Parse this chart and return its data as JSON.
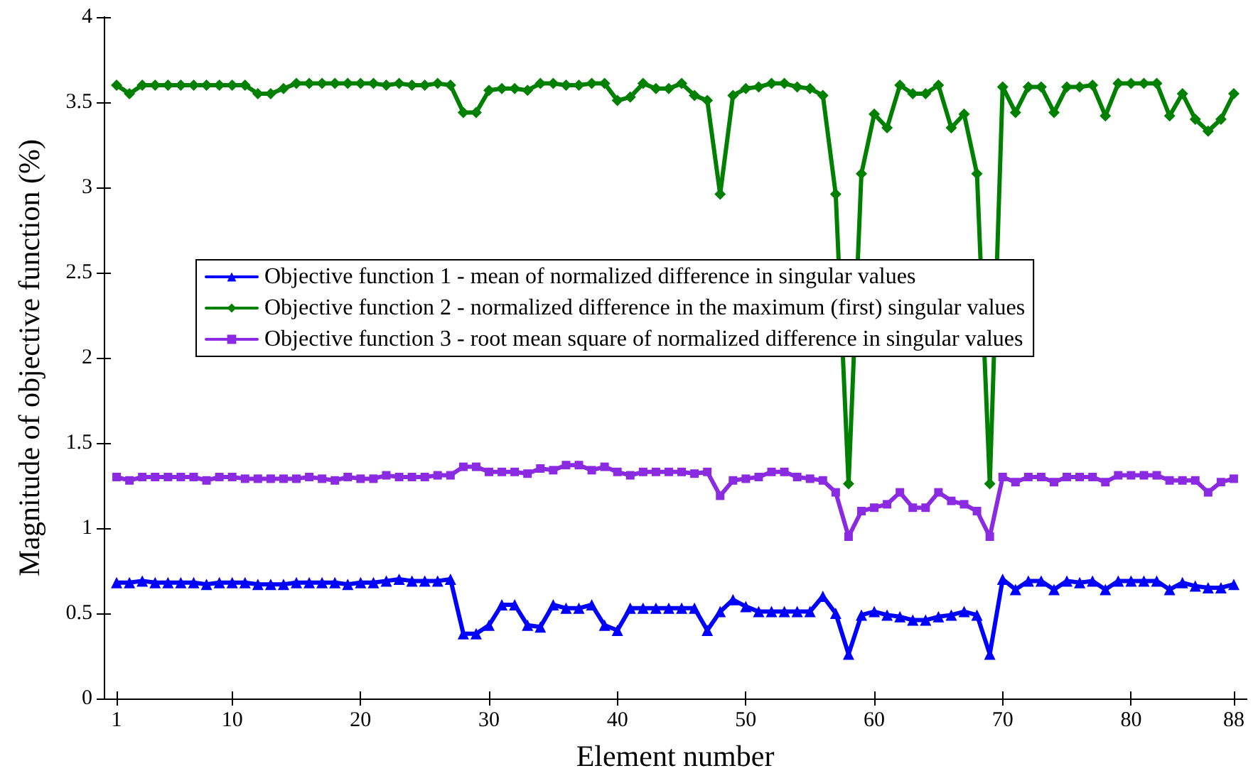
{
  "chart_data": {
    "type": "line",
    "xlabel": "Element number",
    "ylabel": "Magnitude of objective function (%)",
    "x": [
      1,
      2,
      3,
      4,
      5,
      6,
      7,
      8,
      9,
      10,
      11,
      12,
      13,
      14,
      15,
      16,
      17,
      18,
      19,
      20,
      21,
      22,
      23,
      24,
      25,
      26,
      27,
      28,
      29,
      30,
      31,
      32,
      33,
      34,
      35,
      36,
      37,
      38,
      39,
      40,
      41,
      42,
      43,
      44,
      45,
      46,
      47,
      48,
      49,
      50,
      51,
      52,
      53,
      54,
      55,
      56,
      57,
      58,
      59,
      60,
      61,
      62,
      63,
      64,
      65,
      66,
      67,
      68,
      69,
      70,
      71,
      72,
      73,
      74,
      75,
      76,
      77,
      78,
      79,
      80,
      81,
      82,
      83,
      84,
      85,
      86,
      87,
      88
    ],
    "xlim": [
      0,
      89
    ],
    "xticks": [
      1,
      10,
      20,
      30,
      40,
      50,
      60,
      70,
      80,
      88
    ],
    "ylim": [
      0,
      4
    ],
    "yticks": [
      0,
      0.5,
      1,
      1.5,
      2,
      2.5,
      3,
      3.5,
      4
    ],
    "grid": false,
    "legend": "center",
    "line_style": "solid",
    "series": [
      {
        "name": "Objective function 1 - mean of normalized difference in singular values",
        "color": "#0000ff",
        "marker": "triangle",
        "values": [
          0.68,
          0.68,
          0.69,
          0.68,
          0.68,
          0.68,
          0.68,
          0.67,
          0.68,
          0.68,
          0.68,
          0.67,
          0.67,
          0.67,
          0.68,
          0.68,
          0.68,
          0.68,
          0.67,
          0.68,
          0.68,
          0.69,
          0.7,
          0.69,
          0.69,
          0.69,
          0.7,
          0.38,
          0.38,
          0.43,
          0.55,
          0.55,
          0.43,
          0.42,
          0.55,
          0.53,
          0.53,
          0.55,
          0.43,
          0.4,
          0.53,
          0.53,
          0.53,
          0.53,
          0.53,
          0.53,
          0.4,
          0.51,
          0.58,
          0.54,
          0.51,
          0.51,
          0.51,
          0.51,
          0.51,
          0.6,
          0.5,
          0.26,
          0.49,
          0.51,
          0.49,
          0.48,
          0.46,
          0.46,
          0.48,
          0.49,
          0.51,
          0.49,
          0.26,
          0.7,
          0.64,
          0.69,
          0.69,
          0.64,
          0.69,
          0.68,
          0.69,
          0.64,
          0.69,
          0.69,
          0.69,
          0.69,
          0.64,
          0.68,
          0.66,
          0.65,
          0.65,
          0.67
        ]
      },
      {
        "name": "Objective function 2 - normalized difference in the maximum (first) singular values",
        "color": "#008000",
        "marker": "diamond",
        "values": [
          3.6,
          3.55,
          3.6,
          3.6,
          3.6,
          3.6,
          3.6,
          3.6,
          3.6,
          3.6,
          3.6,
          3.55,
          3.55,
          3.58,
          3.61,
          3.61,
          3.61,
          3.61,
          3.61,
          3.61,
          3.61,
          3.6,
          3.61,
          3.6,
          3.6,
          3.61,
          3.6,
          3.44,
          3.44,
          3.57,
          3.58,
          3.58,
          3.57,
          3.61,
          3.61,
          3.6,
          3.6,
          3.61,
          3.61,
          3.51,
          3.53,
          3.61,
          3.58,
          3.58,
          3.61,
          3.54,
          3.51,
          2.96,
          3.54,
          3.58,
          3.59,
          3.61,
          3.61,
          3.59,
          3.58,
          3.54,
          2.96,
          1.26,
          3.08,
          3.43,
          3.35,
          3.6,
          3.55,
          3.55,
          3.6,
          3.35,
          3.43,
          3.08,
          1.26,
          3.59,
          3.44,
          3.59,
          3.59,
          3.44,
          3.59,
          3.59,
          3.6,
          3.42,
          3.61,
          3.61,
          3.61,
          3.61,
          3.42,
          3.55,
          3.4,
          3.33,
          3.4,
          3.55
        ]
      },
      {
        "name": "Objective function 3 - root mean square of normalized difference in singular values",
        "color": "#8a2be2",
        "marker": "square",
        "values": [
          1.3,
          1.28,
          1.3,
          1.3,
          1.3,
          1.3,
          1.3,
          1.28,
          1.3,
          1.3,
          1.29,
          1.29,
          1.29,
          1.29,
          1.29,
          1.3,
          1.29,
          1.28,
          1.3,
          1.29,
          1.29,
          1.31,
          1.3,
          1.3,
          1.3,
          1.31,
          1.31,
          1.36,
          1.36,
          1.33,
          1.33,
          1.33,
          1.32,
          1.35,
          1.34,
          1.37,
          1.37,
          1.34,
          1.36,
          1.33,
          1.31,
          1.33,
          1.33,
          1.33,
          1.33,
          1.32,
          1.33,
          1.19,
          1.28,
          1.29,
          1.3,
          1.33,
          1.33,
          1.3,
          1.29,
          1.28,
          1.21,
          0.95,
          1.1,
          1.12,
          1.14,
          1.21,
          1.12,
          1.12,
          1.21,
          1.16,
          1.14,
          1.1,
          0.95,
          1.3,
          1.27,
          1.3,
          1.3,
          1.27,
          1.3,
          1.3,
          1.3,
          1.27,
          1.31,
          1.31,
          1.31,
          1.31,
          1.28,
          1.28,
          1.28,
          1.21,
          1.27,
          1.29
        ]
      }
    ]
  }
}
